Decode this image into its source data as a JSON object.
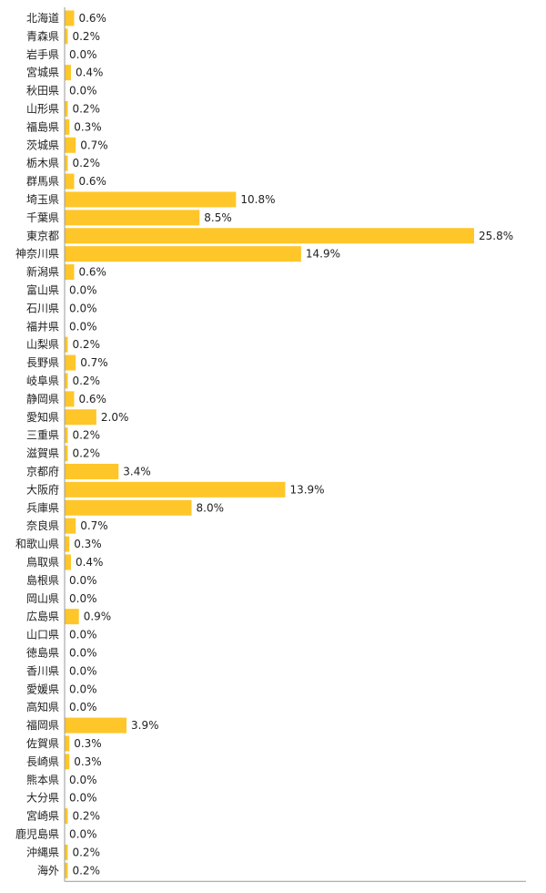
{
  "chart_data": {
    "type": "bar",
    "orientation": "horizontal",
    "bar_color": "#ffc629",
    "axis_color": "#999999",
    "xlim": [
      0,
      30
    ],
    "grid": false,
    "categories": [
      "北海道",
      "青森県",
      "岩手県",
      "宮城県",
      "秋田県",
      "山形県",
      "福島県",
      "茨城県",
      "栃木県",
      "群馬県",
      "埼玉県",
      "千葉県",
      "東京都",
      "神奈川県",
      "新潟県",
      "富山県",
      "石川県",
      "福井県",
      "山梨県",
      "長野県",
      "岐阜県",
      "静岡県",
      "愛知県",
      "三重県",
      "滋賀県",
      "京都府",
      "大阪府",
      "兵庫県",
      "奈良県",
      "和歌山県",
      "鳥取県",
      "島根県",
      "岡山県",
      "広島県",
      "山口県",
      "徳島県",
      "香川県",
      "愛媛県",
      "高知県",
      "福岡県",
      "佐賀県",
      "長崎県",
      "熊本県",
      "大分県",
      "宮崎県",
      "鹿児島県",
      "沖縄県",
      "海外"
    ],
    "values": [
      0.6,
      0.2,
      0.0,
      0.4,
      0.0,
      0.2,
      0.3,
      0.7,
      0.2,
      0.6,
      10.8,
      8.5,
      25.8,
      14.9,
      0.6,
      0.0,
      0.0,
      0.0,
      0.2,
      0.7,
      0.2,
      0.6,
      2.0,
      0.2,
      0.2,
      3.4,
      13.9,
      8.0,
      0.7,
      0.3,
      0.4,
      0.0,
      0.0,
      0.9,
      0.0,
      0.0,
      0.0,
      0.0,
      0.0,
      3.9,
      0.3,
      0.3,
      0.0,
      0.0,
      0.2,
      0.0,
      0.2,
      0.2
    ],
    "value_labels": [
      "0.6%",
      "0.2%",
      "0.0%",
      "0.4%",
      "0.0%",
      "0.2%",
      "0.3%",
      "0.7%",
      "0.2%",
      "0.6%",
      "10.8%",
      "8.5%",
      "25.8%",
      "14.9%",
      "0.6%",
      "0.0%",
      "0.0%",
      "0.0%",
      "0.2%",
      "0.7%",
      "0.2%",
      "0.6%",
      "2.0%",
      "0.2%",
      "0.2%",
      "3.4%",
      "13.9%",
      "8.0%",
      "0.7%",
      "0.3%",
      "0.4%",
      "0.0%",
      "0.0%",
      "0.9%",
      "0.0%",
      "0.0%",
      "0.0%",
      "0.0%",
      "0.0%",
      "3.9%",
      "0.3%",
      "0.3%",
      "0.0%",
      "0.0%",
      "0.2%",
      "0.0%",
      "0.2%",
      "0.2%"
    ]
  }
}
